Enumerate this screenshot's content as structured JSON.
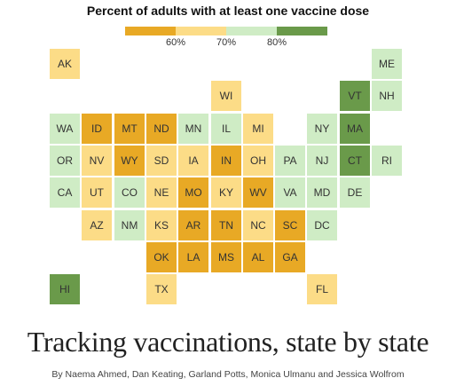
{
  "chart_data": {
    "type": "tile-map",
    "title": "Percent of adults with at least one vaccine dose",
    "legend": {
      "bins": [
        {
          "range": "<60%",
          "color": "#e8a925"
        },
        {
          "range": "60%-70%",
          "color": "#fcdc87"
        },
        {
          "range": "70%-80%",
          "color": "#cfecc5"
        },
        {
          "range": ">=80%",
          "color": "#6a9a4a"
        }
      ],
      "tick_labels": [
        "60%",
        "70%",
        "80%"
      ]
    },
    "states": [
      {
        "abbr": "AK",
        "col": 0,
        "row": 0,
        "bin": 1
      },
      {
        "abbr": "ME",
        "col": 10,
        "row": 0,
        "bin": 2
      },
      {
        "abbr": "WI",
        "col": 5,
        "row": 1,
        "bin": 1
      },
      {
        "abbr": "VT",
        "col": 9,
        "row": 1,
        "bin": 3
      },
      {
        "abbr": "NH",
        "col": 10,
        "row": 1,
        "bin": 2
      },
      {
        "abbr": "WA",
        "col": 0,
        "row": 2,
        "bin": 2
      },
      {
        "abbr": "ID",
        "col": 1,
        "row": 2,
        "bin": 0
      },
      {
        "abbr": "MT",
        "col": 2,
        "row": 2,
        "bin": 0
      },
      {
        "abbr": "ND",
        "col": 3,
        "row": 2,
        "bin": 0
      },
      {
        "abbr": "MN",
        "col": 4,
        "row": 2,
        "bin": 2
      },
      {
        "abbr": "IL",
        "col": 5,
        "row": 2,
        "bin": 2
      },
      {
        "abbr": "MI",
        "col": 6,
        "row": 2,
        "bin": 1
      },
      {
        "abbr": "NY",
        "col": 8,
        "row": 2,
        "bin": 2
      },
      {
        "abbr": "MA",
        "col": 9,
        "row": 2,
        "bin": 3
      },
      {
        "abbr": "OR",
        "col": 0,
        "row": 3,
        "bin": 2
      },
      {
        "abbr": "NV",
        "col": 1,
        "row": 3,
        "bin": 1
      },
      {
        "abbr": "WY",
        "col": 2,
        "row": 3,
        "bin": 0
      },
      {
        "abbr": "SD",
        "col": 3,
        "row": 3,
        "bin": 1
      },
      {
        "abbr": "IA",
        "col": 4,
        "row": 3,
        "bin": 1
      },
      {
        "abbr": "IN",
        "col": 5,
        "row": 3,
        "bin": 0
      },
      {
        "abbr": "OH",
        "col": 6,
        "row": 3,
        "bin": 1
      },
      {
        "abbr": "PA",
        "col": 7,
        "row": 3,
        "bin": 2
      },
      {
        "abbr": "NJ",
        "col": 8,
        "row": 3,
        "bin": 2
      },
      {
        "abbr": "CT",
        "col": 9,
        "row": 3,
        "bin": 3
      },
      {
        "abbr": "RI",
        "col": 10,
        "row": 3,
        "bin": 2
      },
      {
        "abbr": "CA",
        "col": 0,
        "row": 4,
        "bin": 2
      },
      {
        "abbr": "UT",
        "col": 1,
        "row": 4,
        "bin": 1
      },
      {
        "abbr": "CO",
        "col": 2,
        "row": 4,
        "bin": 2
      },
      {
        "abbr": "NE",
        "col": 3,
        "row": 4,
        "bin": 1
      },
      {
        "abbr": "MO",
        "col": 4,
        "row": 4,
        "bin": 0
      },
      {
        "abbr": "KY",
        "col": 5,
        "row": 4,
        "bin": 1
      },
      {
        "abbr": "WV",
        "col": 6,
        "row": 4,
        "bin": 0
      },
      {
        "abbr": "VA",
        "col": 7,
        "row": 4,
        "bin": 2
      },
      {
        "abbr": "MD",
        "col": 8,
        "row": 4,
        "bin": 2
      },
      {
        "abbr": "DE",
        "col": 9,
        "row": 4,
        "bin": 2
      },
      {
        "abbr": "AZ",
        "col": 1,
        "row": 5,
        "bin": 1
      },
      {
        "abbr": "NM",
        "col": 2,
        "row": 5,
        "bin": 2
      },
      {
        "abbr": "KS",
        "col": 3,
        "row": 5,
        "bin": 1
      },
      {
        "abbr": "AR",
        "col": 4,
        "row": 5,
        "bin": 0
      },
      {
        "abbr": "TN",
        "col": 5,
        "row": 5,
        "bin": 0
      },
      {
        "abbr": "NC",
        "col": 6,
        "row": 5,
        "bin": 1
      },
      {
        "abbr": "SC",
        "col": 7,
        "row": 5,
        "bin": 0
      },
      {
        "abbr": "DC",
        "col": 8,
        "row": 5,
        "bin": 2
      },
      {
        "abbr": "OK",
        "col": 3,
        "row": 6,
        "bin": 0
      },
      {
        "abbr": "LA",
        "col": 4,
        "row": 6,
        "bin": 0
      },
      {
        "abbr": "MS",
        "col": 5,
        "row": 6,
        "bin": 0
      },
      {
        "abbr": "AL",
        "col": 6,
        "row": 6,
        "bin": 0
      },
      {
        "abbr": "GA",
        "col": 7,
        "row": 6,
        "bin": 0
      },
      {
        "abbr": "HI",
        "col": 0,
        "row": 7,
        "bin": 3
      },
      {
        "abbr": "TX",
        "col": 3,
        "row": 7,
        "bin": 1
      },
      {
        "abbr": "FL",
        "col": 8,
        "row": 7,
        "bin": 1
      }
    ]
  },
  "headline": "Tracking vaccinations, state by state",
  "byline": "By Naema Ahmed, Dan Keating, Garland Potts, Monica Ulmanu and Jessica Wolfrom"
}
